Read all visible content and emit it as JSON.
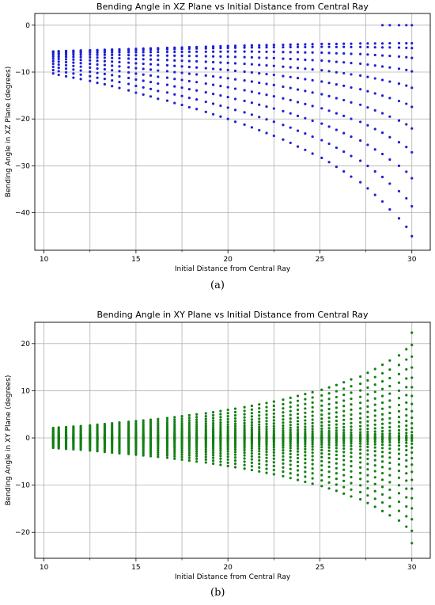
{
  "panels": [
    {
      "label": "(a)"
    },
    {
      "label": "(b)"
    }
  ],
  "chart_data": [
    {
      "type": "scatter",
      "title": "Bending Angle in XZ Plane vs Initial Distance from Central Ray",
      "xlabel": "Initial Distance from Central Ray",
      "ylabel": "Bending Angle in XZ Plane (degrees)",
      "xlim": [
        9.5,
        31
      ],
      "ylim": [
        -48,
        2.5
      ],
      "xticks": [
        10,
        15,
        20,
        25,
        30
      ],
      "yticks": [
        0,
        -10,
        -20,
        -30,
        -40
      ],
      "grid": true,
      "color": "#1f1fd6",
      "x_samples": [
        10.5,
        10.8,
        11.2,
        11.6,
        12.0,
        12.5,
        12.9,
        13.3,
        13.7,
        14.1,
        14.6,
        15.0,
        15.4,
        15.8,
        16.2,
        16.7,
        17.1,
        17.5,
        17.9,
        18.3,
        18.8,
        19.2,
        19.6,
        20.0,
        20.4,
        20.9,
        21.3,
        21.7,
        22.1,
        22.5,
        23.0,
        23.4,
        23.8,
        24.2,
        24.6,
        25.1,
        25.5,
        25.9,
        26.3,
        26.7,
        27.2,
        27.6,
        28.0,
        28.4,
        28.8,
        29.3,
        29.7,
        30.0
      ],
      "upper_values": [
        -5.6,
        -5.55,
        -5.5,
        -5.45,
        -5.4,
        -5.35,
        -5.3,
        -5.25,
        -5.2,
        -5.15,
        -5.1,
        -5.05,
        -5.0,
        -4.95,
        -4.9,
        -4.85,
        -4.8,
        -4.75,
        -4.7,
        -4.65,
        -4.6,
        -4.55,
        -4.5,
        -4.45,
        -4.4,
        -4.35,
        -4.3,
        -4.3,
        -4.25,
        -4.2,
        -4.2,
        -4.15,
        -4.1,
        -4.1,
        -4.05,
        -4.0,
        -4.0,
        -4.0,
        -3.95,
        -3.95,
        -3.9,
        -3.9,
        -3.9,
        -3.9,
        -3.85,
        -3.85,
        -3.85,
        -3.85
      ],
      "lower_values": [
        -10.3,
        -10.6,
        -10.9,
        -11.2,
        -11.5,
        -11.9,
        -12.3,
        -12.6,
        -13.0,
        -13.4,
        -13.9,
        -14.4,
        -14.8,
        -15.2,
        -15.7,
        -16.1,
        -16.6,
        -17.0,
        -17.5,
        -17.9,
        -18.5,
        -19.0,
        -19.5,
        -20.0,
        -20.6,
        -21.2,
        -21.8,
        -22.4,
        -23.0,
        -23.6,
        -24.4,
        -25.1,
        -25.9,
        -26.6,
        -27.4,
        -28.3,
        -29.2,
        -30.2,
        -31.2,
        -32.3,
        -33.5,
        -34.8,
        -36.2,
        -37.6,
        -39.3,
        -41.2,
        -43.0,
        -45.0
      ],
      "points_per_column": 11,
      "outlier_points": [
        {
          "x": 28.4,
          "y": 0
        },
        {
          "x": 28.8,
          "y": 0
        },
        {
          "x": 29.3,
          "y": 0
        },
        {
          "x": 29.7,
          "y": 0
        },
        {
          "x": 30.0,
          "y": 0
        }
      ]
    },
    {
      "type": "scatter",
      "title": "Bending Angle in XY Plane vs Initial Distance from Central Ray",
      "xlabel": "Initial Distance from Central Ray",
      "ylabel": "Bending Angle in XY Plane (degrees)",
      "xlim": [
        9.5,
        31
      ],
      "ylim": [
        -25.5,
        24.5
      ],
      "xticks": [
        10,
        15,
        20,
        25,
        30
      ],
      "yticks": [
        20,
        10,
        0,
        -10,
        -20
      ],
      "grid": true,
      "color": "#137f13",
      "x_samples": [
        10.5,
        10.8,
        11.2,
        11.6,
        12.0,
        12.5,
        12.9,
        13.3,
        13.7,
        14.1,
        14.6,
        15.0,
        15.4,
        15.8,
        16.2,
        16.7,
        17.1,
        17.5,
        17.9,
        18.3,
        18.8,
        19.2,
        19.6,
        20.0,
        20.4,
        20.9,
        21.3,
        21.7,
        22.1,
        22.5,
        23.0,
        23.4,
        23.8,
        24.2,
        24.6,
        25.1,
        25.5,
        25.9,
        26.3,
        26.7,
        27.2,
        27.6,
        28.0,
        28.4,
        28.8,
        29.3,
        29.7,
        30.0
      ],
      "envelope_values": [
        2.1,
        2.2,
        2.3,
        2.4,
        2.5,
        2.65,
        2.8,
        2.95,
        3.1,
        3.25,
        3.4,
        3.55,
        3.7,
        3.85,
        4.0,
        4.2,
        4.4,
        4.6,
        4.8,
        5.0,
        5.2,
        5.45,
        5.7,
        5.95,
        6.2,
        6.5,
        6.8,
        7.1,
        7.4,
        7.7,
        8.1,
        8.5,
        8.9,
        9.3,
        9.7,
        10.2,
        10.7,
        11.2,
        11.8,
        12.4,
        13.0,
        13.8,
        14.6,
        15.5,
        16.4,
        17.5,
        18.8,
        22.3
      ],
      "points_per_column": 15
    }
  ]
}
